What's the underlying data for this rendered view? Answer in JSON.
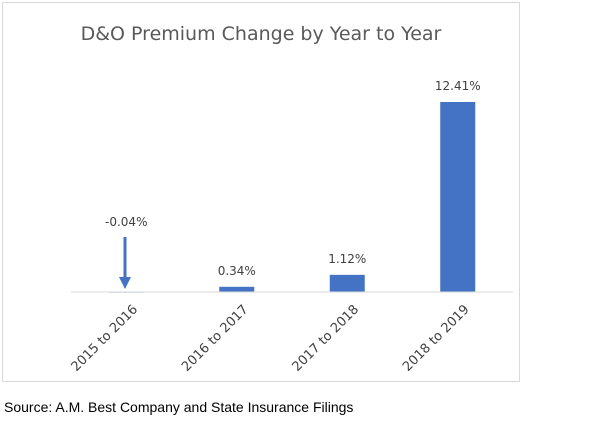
{
  "chart_data": {
    "type": "bar",
    "title": "D&O Premium Change by Year to Year",
    "categories": [
      "2015 to 2016",
      "2016 to 2017",
      "2017 to 2018",
      "2018 to 2019"
    ],
    "values": [
      -0.04,
      0.34,
      1.12,
      12.41
    ],
    "data_labels": [
      "-0.04%",
      "0.34%",
      "1.12%",
      "12.41%"
    ],
    "ylim": [
      -0.2,
      13.0
    ],
    "grid": false,
    "legend": "none",
    "annotations": [
      {
        "type": "arrow",
        "target_category": "2015 to 2016",
        "direction": "down"
      }
    ]
  },
  "colors": {
    "bar": "#4472c4",
    "axis": "#d9d9d9",
    "title": "#595959",
    "label": "#404040"
  },
  "source": "Source: A.M. Best Company and State Insurance Filings"
}
